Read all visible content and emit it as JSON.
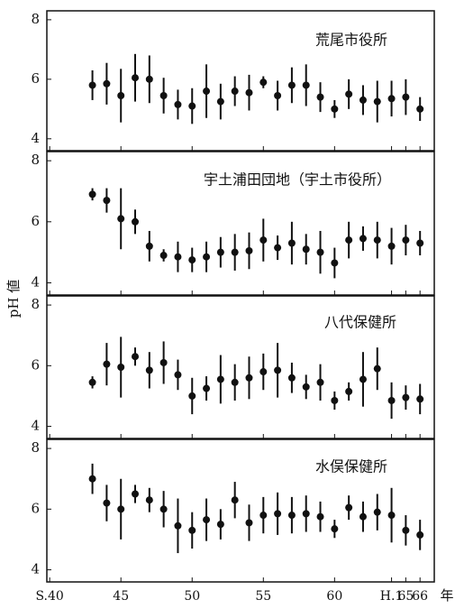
{
  "chart_data": [
    {
      "type": "errorbar",
      "title": "荒尾市役所",
      "color": "#111111",
      "x": [
        43,
        44,
        45,
        46,
        47,
        48,
        49,
        50,
        51,
        52,
        53,
        54,
        55,
        56,
        57,
        58,
        59,
        60,
        61,
        62,
        63,
        64,
        65,
        66
      ],
      "values": [
        5.8,
        5.85,
        5.45,
        6.05,
        6.0,
        5.45,
        5.15,
        5.1,
        5.6,
        5.25,
        5.6,
        5.55,
        5.9,
        5.45,
        5.8,
        5.8,
        5.4,
        5.0,
        5.5,
        5.3,
        5.25,
        5.35,
        5.4,
        5.0
      ],
      "errors": [
        0.5,
        0.7,
        0.9,
        0.8,
        0.8,
        0.6,
        0.5,
        0.6,
        0.9,
        0.6,
        0.5,
        0.6,
        0.2,
        0.5,
        0.6,
        0.7,
        0.5,
        0.3,
        0.5,
        0.5,
        0.7,
        0.6,
        0.6,
        0.4
      ],
      "xlim": [
        39.8,
        67
      ],
      "xticks": [
        40,
        45,
        50,
        55,
        60,
        64,
        65,
        66
      ],
      "ylim": [
        3.6,
        8.3
      ],
      "yticks": [
        4,
        6,
        8
      ]
    },
    {
      "type": "errorbar",
      "title": "宇土浦田団地（宇土市役所）",
      "color": "#111111",
      "ylabel": "pH 値",
      "x": [
        43,
        44,
        45,
        46,
        47,
        48,
        49,
        50,
        51,
        52,
        53,
        54,
        55,
        56,
        57,
        58,
        59,
        60,
        61,
        62,
        63,
        64,
        65,
        66
      ],
      "values": [
        6.9,
        6.7,
        6.1,
        6.0,
        5.2,
        4.9,
        4.85,
        4.75,
        4.85,
        5.0,
        5.0,
        5.05,
        5.4,
        5.15,
        5.3,
        5.1,
        5.0,
        4.65,
        5.4,
        5.45,
        5.4,
        5.2,
        5.4,
        5.3
      ],
      "errors": [
        0.2,
        0.4,
        1.0,
        0.4,
        0.5,
        0.2,
        0.5,
        0.4,
        0.5,
        0.5,
        0.6,
        0.6,
        0.7,
        0.4,
        0.7,
        0.5,
        0.7,
        0.5,
        0.6,
        0.4,
        0.6,
        0.6,
        0.5,
        0.4
      ],
      "xlim": [
        39.8,
        67
      ],
      "xticks": [
        40,
        45,
        50,
        55,
        60,
        64,
        65,
        66
      ],
      "ylim": [
        3.6,
        8.3
      ],
      "yticks": [
        4,
        6,
        8
      ]
    },
    {
      "type": "errorbar",
      "title": "八代保健所",
      "color": "#111111",
      "x": [
        43,
        44,
        45,
        46,
        47,
        48,
        49,
        50,
        51,
        52,
        53,
        54,
        55,
        56,
        57,
        58,
        59,
        60,
        61,
        62,
        63,
        64,
        65,
        66
      ],
      "values": [
        5.45,
        6.05,
        5.95,
        6.3,
        5.85,
        6.1,
        5.7,
        5.0,
        5.25,
        5.55,
        5.45,
        5.6,
        5.8,
        5.85,
        5.6,
        5.3,
        5.45,
        4.85,
        5.15,
        5.55,
        5.9,
        4.85,
        4.95,
        4.9
      ],
      "errors": [
        0.2,
        0.7,
        1.0,
        0.3,
        0.6,
        0.7,
        0.5,
        0.6,
        0.4,
        0.8,
        0.6,
        0.7,
        0.6,
        0.9,
        0.5,
        0.4,
        0.6,
        0.3,
        0.3,
        0.9,
        0.7,
        0.6,
        0.4,
        0.5
      ],
      "xlim": [
        39.8,
        67
      ],
      "xticks": [
        40,
        45,
        50,
        55,
        60,
        64,
        65,
        66
      ],
      "ylim": [
        3.6,
        8.3
      ],
      "yticks": [
        4,
        6,
        8
      ]
    },
    {
      "type": "errorbar",
      "title": "水俣保健所",
      "color": "#111111",
      "xlabel": "年",
      "x": [
        43,
        44,
        45,
        46,
        47,
        48,
        49,
        50,
        51,
        52,
        53,
        54,
        55,
        56,
        57,
        58,
        59,
        60,
        61,
        62,
        63,
        64,
        65,
        66
      ],
      "values": [
        7.0,
        6.2,
        6.0,
        6.5,
        6.3,
        6.0,
        5.45,
        5.3,
        5.65,
        5.5,
        6.3,
        5.55,
        5.8,
        5.85,
        5.8,
        5.85,
        5.75,
        5.35,
        6.05,
        5.75,
        5.9,
        5.8,
        5.3,
        5.15
      ],
      "errors": [
        0.5,
        0.6,
        1.0,
        0.3,
        0.4,
        0.6,
        0.9,
        0.6,
        0.7,
        0.5,
        0.6,
        0.6,
        0.6,
        0.7,
        0.6,
        0.6,
        0.5,
        0.3,
        0.4,
        0.5,
        0.6,
        0.9,
        0.5,
        0.5
      ],
      "xlim": [
        39.8,
        67
      ],
      "xticks": [
        {
          "value": 40,
          "label": "S.40"
        },
        45,
        50,
        55,
        60,
        {
          "value": 64,
          "label": "H.1"
        },
        65,
        66
      ],
      "ylim": [
        3.6,
        8.3
      ],
      "yticks": [
        4,
        6,
        8
      ]
    }
  ]
}
